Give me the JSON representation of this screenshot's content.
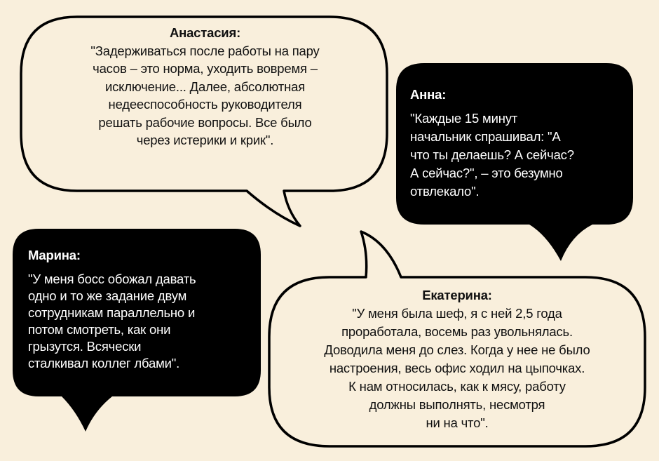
{
  "colors": {
    "background": "#f9efdc",
    "light_bubble": "#f9efdc",
    "dark_bubble": "#000000",
    "outline": "#000000"
  },
  "bubbles": {
    "anastasia": {
      "name": "Анастасия:",
      "lines": [
        "\"Задерживаться после работы на пару",
        "часов – это норма, уходить вовремя –",
        "исключение... Далее, абсолютная",
        "недееспособность руководителя",
        "решать рабочие вопросы. Все было",
        "через истерики и крик\"."
      ]
    },
    "anna": {
      "name": "Анна:",
      "lines": [
        "\"Каждые 15 минут",
        "начальник спрашивал: \"А",
        "что ты делаешь? А сейчас?",
        "А сейчас?\", – это безумно",
        "отвлекало\"."
      ]
    },
    "marina": {
      "name": "Марина:",
      "lines": [
        "\"У меня босс обожал давать",
        "одно и то же задание двум",
        "сотрудникам параллельно и",
        "потом смотреть, как они",
        "грызутся. Всячески",
        "сталкивал коллег лбами\"."
      ]
    },
    "ekaterina": {
      "name": "Екатерина:",
      "lines": [
        "\"У меня была шеф, я с ней 2,5 года",
        "проработала, восемь раз увольнялась.",
        "Доводила меня до слез. Когда у нее не было",
        "настроения, весь офис ходил на цыпочках.",
        "К нам относилась, как к мясу, работу",
        "должны выполнять, несмотря",
        "ни на что\"."
      ]
    }
  }
}
